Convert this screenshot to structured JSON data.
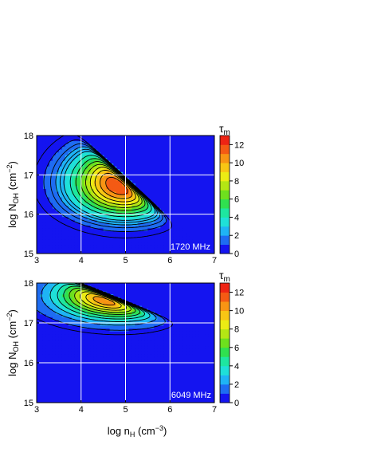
{
  "chart_data": [
    {
      "type": "heatmap",
      "panel_label": "1720 MHz",
      "x_ticks": [
        "3",
        "4",
        "5",
        "6",
        "7"
      ],
      "y_ticks": [
        "15",
        "16",
        "17",
        "18"
      ],
      "xlim": [
        3,
        7
      ],
      "ylim": [
        15,
        18
      ],
      "ylabel": {
        "main": "log N",
        "sub": "OH",
        "unit_open": " (cm",
        "unit_sup": "−2",
        "unit_close": ")"
      },
      "grid": true,
      "peak": {
        "x": 5.0,
        "y": 16.85,
        "value": 12
      },
      "contour_levels": [
        0.5,
        1,
        1.5,
        2,
        2.5,
        3,
        4,
        5,
        6,
        7,
        8,
        9,
        10,
        11,
        12
      ],
      "colorbar": {
        "title_main": "τ",
        "title_sub": "m",
        "range": [
          0,
          13
        ],
        "ticks": [
          "0",
          "2",
          "4",
          "6",
          "8",
          "10",
          "12"
        ],
        "colors": [
          "#1414f0",
          "#1e6cf2",
          "#1fb4f5",
          "#1fe0d8",
          "#1ee6a0",
          "#30e050",
          "#6ee01e",
          "#b4e614",
          "#ecec14",
          "#f8c614",
          "#f89414",
          "#f45a14",
          "#ee2414"
        ]
      }
    },
    {
      "type": "heatmap",
      "panel_label": "6049 MHz",
      "x_ticks": [
        "3",
        "4",
        "5",
        "6",
        "7"
      ],
      "y_ticks": [
        "15",
        "16",
        "17",
        "18"
      ],
      "xlim": [
        3,
        7
      ],
      "ylim": [
        15,
        18
      ],
      "xlabel": {
        "main": "log n",
        "sub": "H",
        "unit_open": " (cm",
        "unit_sup": "−3",
        "unit_close": ")"
      },
      "ylabel": {
        "main": "log N",
        "sub": "OH",
        "unit_open": " (cm",
        "unit_sup": "−2",
        "unit_close": ")"
      },
      "grid": true,
      "peak": {
        "x": 4.9,
        "y": 17.7,
        "value": 13
      },
      "contour_levels": [
        0.5,
        1,
        2,
        3,
        4,
        5,
        6,
        7,
        8,
        9,
        10,
        11,
        12
      ],
      "colorbar": {
        "title_main": "τ",
        "title_sub": "m",
        "range": [
          0,
          13
        ],
        "ticks": [
          "0",
          "2",
          "4",
          "6",
          "8",
          "10",
          "12"
        ],
        "colors": [
          "#1414f0",
          "#1e6cf2",
          "#1fb4f5",
          "#1fe0d8",
          "#1ee6a0",
          "#30e050",
          "#6ee01e",
          "#b4e614",
          "#ecec14",
          "#f8c614",
          "#f89414",
          "#f45a14",
          "#ee2414"
        ]
      }
    }
  ]
}
